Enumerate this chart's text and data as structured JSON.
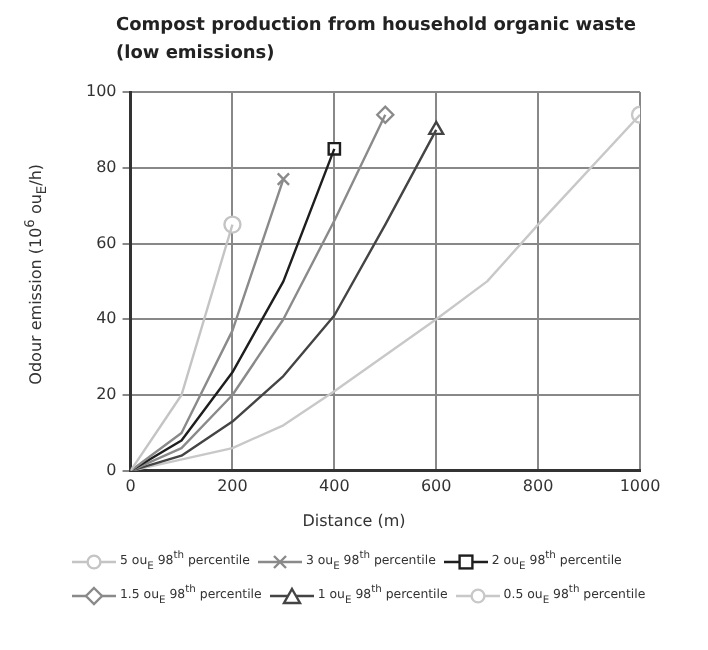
{
  "chart_data": {
    "type": "line",
    "title": "Compost production from household organic waste\n(low emissions)",
    "xlabel": "Distance (m)",
    "ylabel": "Odour emission (10$^{6}$ ou$_{E}$/h)",
    "xlim": [
      0,
      1000
    ],
    "xticks": [
      0,
      200,
      400,
      600,
      800,
      1000
    ],
    "ylim": [
      0,
      100
    ],
    "yticks": [
      0,
      20,
      40,
      60,
      80,
      100
    ],
    "grid": true,
    "legend": "bottom",
    "series": [
      {
        "name": "5 ou$_{E}$ 98$^{th}$ percentile",
        "color": "#c4c4c4",
        "marker": "none",
        "x": [
          0,
          100,
          200
        ],
        "values": [
          0,
          20,
          65
        ]
      },
      {
        "type": "scatter",
        "color": "#c4c4c4",
        "marker": "circle",
        "x": [
          200
        ],
        "values": [
          65
        ]
      },
      {
        "name": "3 ou$_{E}$ 98$^{th}$ percentile",
        "color": "#8a8a8a",
        "marker": "none",
        "x": [
          0,
          100,
          200,
          300
        ],
        "values": [
          0,
          10,
          37,
          77
        ]
      },
      {
        "type": "scatter",
        "color": "#8a8a8a",
        "marker": "cross",
        "x": [
          300
        ],
        "values": [
          77
        ]
      },
      {
        "name": "2 ou$_{E}$ 98$^{th}$ percentile",
        "color": "#1e1e1e",
        "marker": "none",
        "x": [
          0,
          100,
          200,
          300,
          400
        ],
        "values": [
          0,
          8,
          26,
          50,
          85
        ]
      },
      {
        "type": "scatter",
        "color": "#1e1e1e",
        "marker": "square",
        "x": [
          400
        ],
        "values": [
          85
        ]
      },
      {
        "name": "1.5 ou$_{E}$ 98$^{th}$ percentile",
        "color": "#8a8a8a",
        "marker": "none",
        "x": [
          0,
          100,
          200,
          300,
          400,
          500
        ],
        "values": [
          0,
          6,
          20,
          40,
          66,
          94
        ]
      },
      {
        "type": "scatter",
        "color": "#8a8a8a",
        "marker": "diamond",
        "x": [
          500
        ],
        "values": [
          94
        ]
      },
      {
        "name": "1 ou$_{E}$ 98$^{th}$ percentile",
        "color": "#444444",
        "marker": "none",
        "x": [
          0,
          100,
          200,
          300,
          400,
          500,
          600
        ],
        "values": [
          0,
          4,
          13,
          25,
          41,
          65,
          90
        ]
      },
      {
        "type": "scatter",
        "color": "#444444",
        "marker": "triangle",
        "x": [
          600
        ],
        "values": [
          90
        ]
      },
      {
        "name": "0.5 ou$_{E}$ 98$^{th}$ percentile",
        "color": "#c8c8c8",
        "marker": "none",
        "x": [
          0,
          200,
          300,
          400,
          600,
          700,
          800,
          1000
        ],
        "values": [
          0,
          6,
          12,
          21,
          40,
          50,
          65,
          94
        ]
      },
      {
        "type": "scatter",
        "color": "#c8c8c8",
        "marker": "circle",
        "x": [
          1000
        ],
        "values": [
          94
        ]
      }
    ]
  }
}
